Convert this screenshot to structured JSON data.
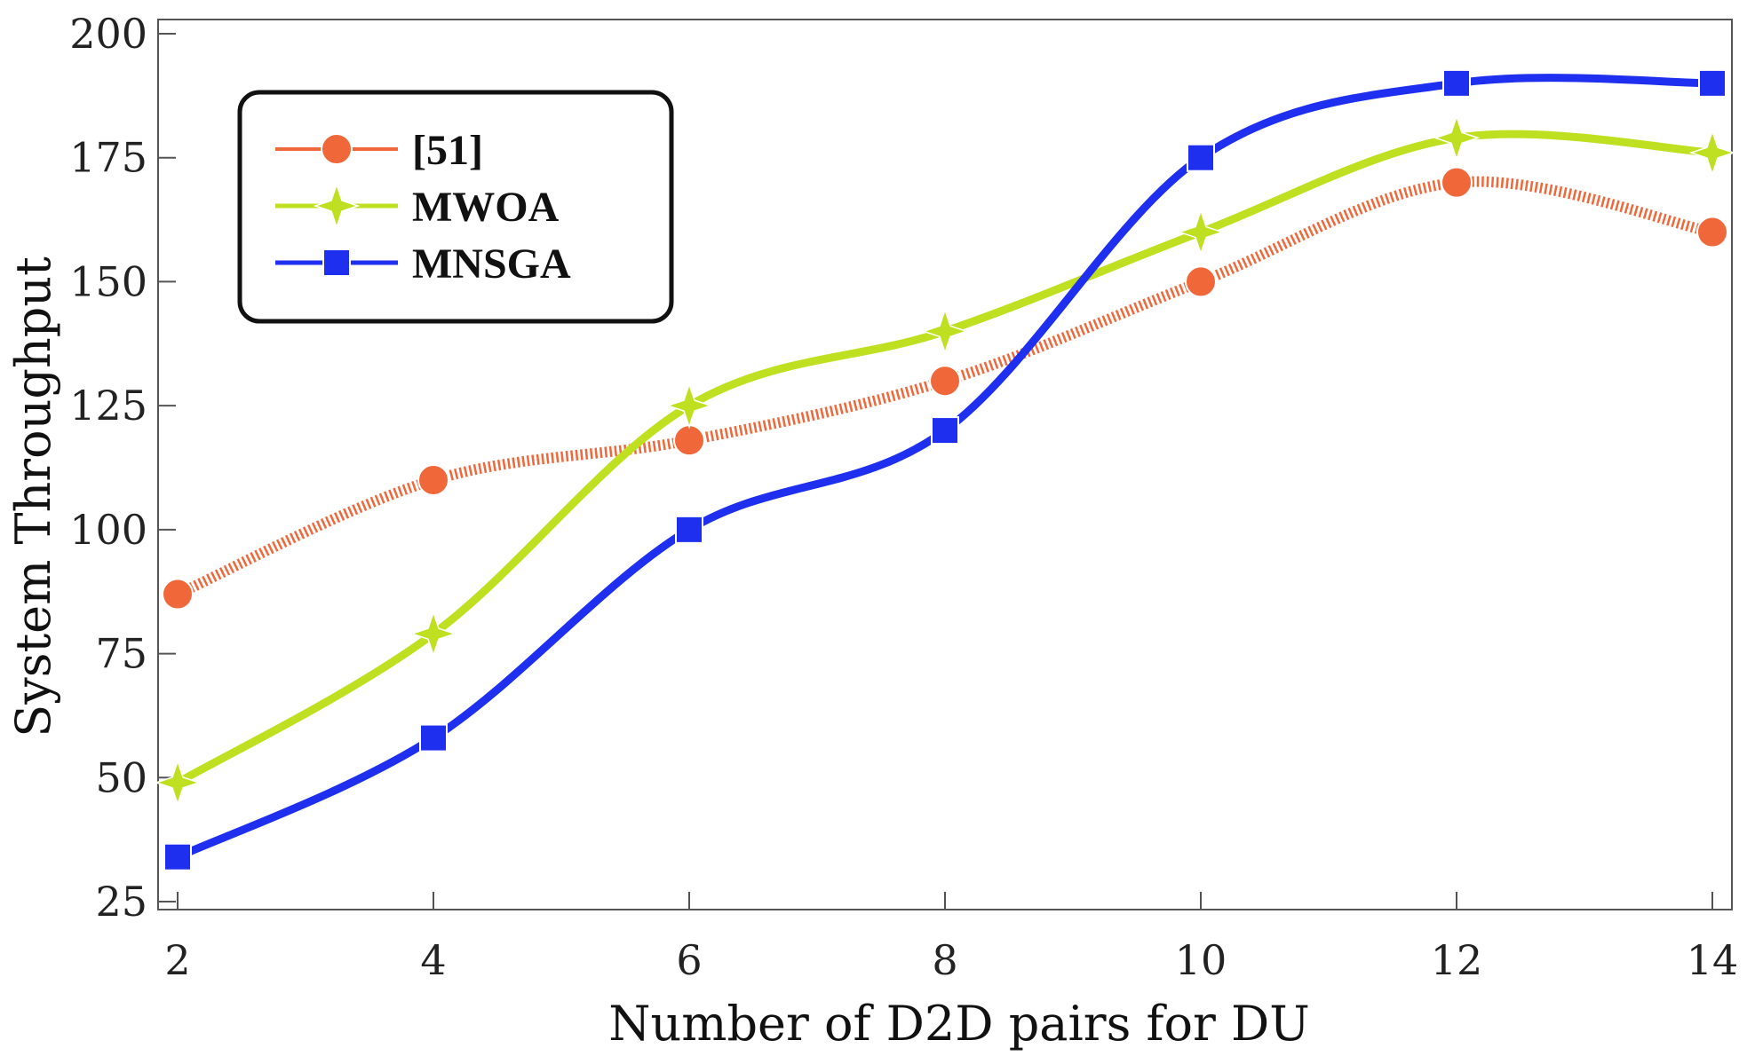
{
  "chart_data": {
    "type": "line",
    "title": "",
    "xlabel": "Number of D2D pairs for DU",
    "ylabel": "System Throughput",
    "x": [
      2,
      4,
      6,
      8,
      10,
      12,
      14
    ],
    "xticks": [
      "2",
      "4",
      "6",
      "8",
      "10",
      "12",
      "14"
    ],
    "yticks": [
      "25",
      "50",
      "75",
      "100",
      "125",
      "150",
      "175",
      "200"
    ],
    "xlim": [
      2,
      14
    ],
    "ylim": [
      25,
      200
    ],
    "grid": false,
    "legend_position": "top-left",
    "series": [
      {
        "name": "[51]",
        "values": [
          87,
          110,
          118,
          130,
          150,
          170,
          160
        ],
        "color": "#f0683a",
        "marker": "circle",
        "line_style": "dotted"
      },
      {
        "name": "MWOA",
        "values": [
          49,
          79,
          125,
          140,
          160,
          179,
          176
        ],
        "color": "#bfe020",
        "marker": "star4",
        "line_style": "solid"
      },
      {
        "name": "MNSGA",
        "values": [
          34,
          58,
          100,
          120,
          175,
          190,
          190
        ],
        "color": "#1f2ff0",
        "marker": "square",
        "line_style": "solid"
      }
    ]
  }
}
